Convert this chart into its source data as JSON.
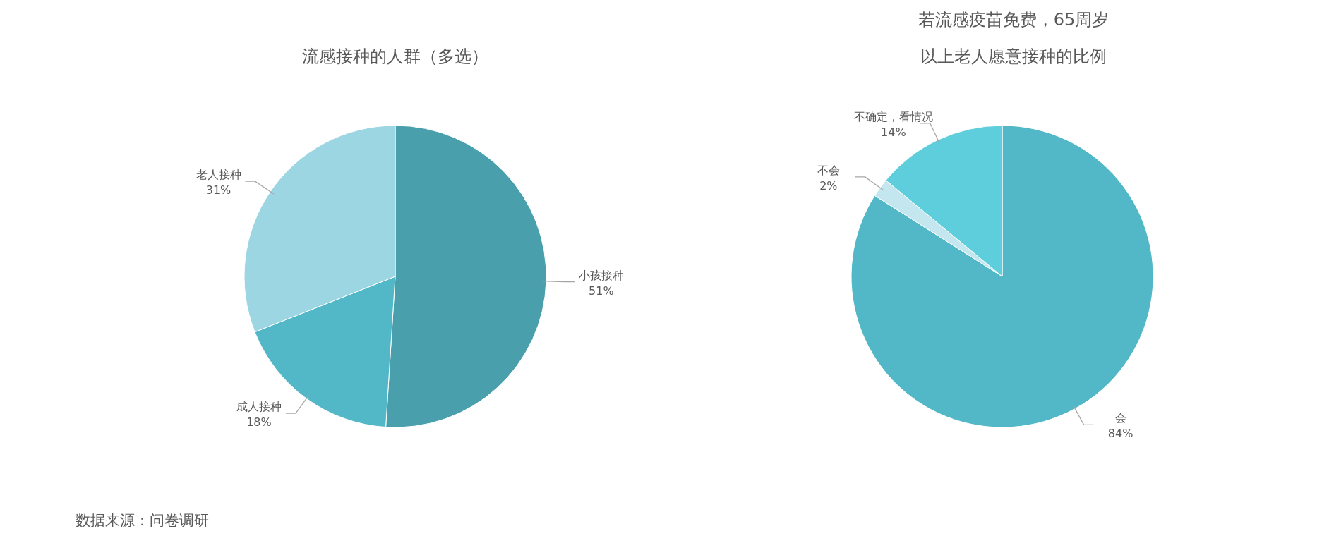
{
  "chart_data": [
    {
      "type": "pie",
      "title": "流感接种的人群（多选）",
      "categories": [
        "小孩接种",
        "成人接种",
        "老人接种"
      ],
      "values": [
        51,
        18,
        31
      ],
      "colors": [
        "#4a9fac",
        "#52b7c6",
        "#9cd6e2"
      ],
      "value_labels": [
        "51%",
        "18%",
        "31%"
      ],
      "annotations": [
        "数据来源：问卷调研"
      ]
    },
    {
      "type": "pie",
      "title": "若流感疫苗免费，65周岁以上老人愿意接种的比例",
      "categories": [
        "会",
        "不会",
        "不确定，看情况"
      ],
      "values": [
        84,
        2,
        14
      ],
      "colors": [
        "#52b7c6",
        "#c4e6ee",
        "#5ecedc"
      ],
      "value_labels": [
        "84%",
        "2%",
        "14%"
      ]
    }
  ]
}
